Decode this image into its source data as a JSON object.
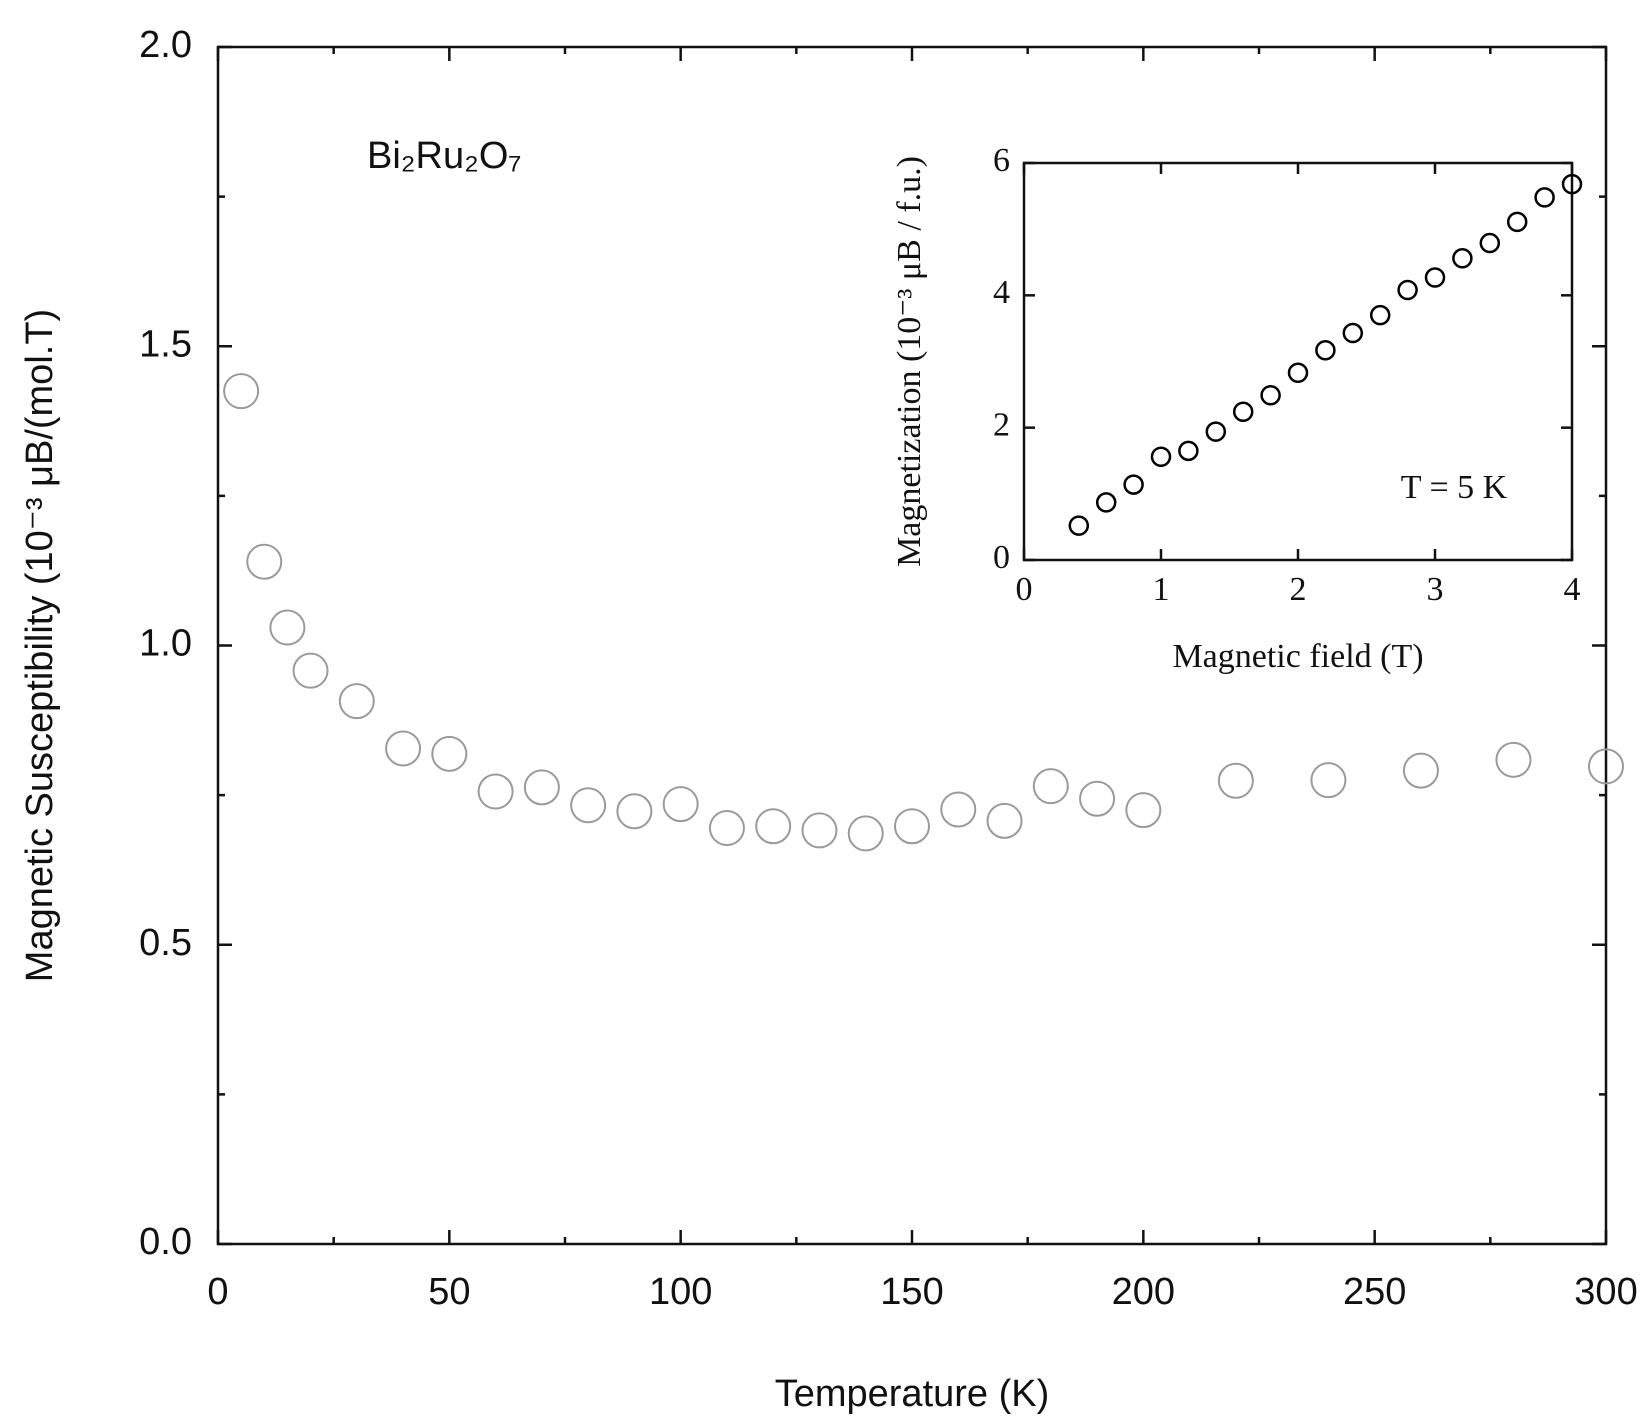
{
  "chart_data": [
    {
      "type": "scatter",
      "title": "Bi₂Ru₂O₇",
      "x_label": "Temperature (K)",
      "y_label": "Magnetic Susceptibility (10⁻³ μB/(mol.T)",
      "x": [
        5,
        10,
        15,
        20,
        30,
        40,
        50,
        60,
        70,
        80,
        90,
        100,
        110,
        120,
        130,
        140,
        150,
        160,
        170,
        180,
        190,
        200,
        220,
        240,
        260,
        280,
        300
      ],
      "values": [
        1.425,
        1.14,
        1.03,
        0.958,
        0.907,
        0.828,
        0.819,
        0.756,
        0.763,
        0.733,
        0.723,
        0.735,
        0.695,
        0.698,
        0.691,
        0.686,
        0.698,
        0.726,
        0.707,
        0.765,
        0.744,
        0.725,
        0.774,
        0.775,
        0.791,
        0.809,
        0.798
      ],
      "color": "#9a9a9a",
      "xlim": [
        0,
        300
      ],
      "xticks": [
        0,
        50,
        100,
        150,
        200,
        250,
        300
      ],
      "ylim": [
        0,
        2
      ],
      "yticks": [
        {
          "value": 0,
          "label": "0.0"
        },
        0.5,
        {
          "value": 1,
          "label": "1.0"
        },
        1.5,
        {
          "value": 2,
          "label": "2.0"
        }
      ],
      "minor_ticks": true
    },
    {
      "type": "scatter",
      "x_label": "Magnetic field (T)",
      "y_label": "Magnetization (10⁻³ μB / f.u.)",
      "annotation": "T = 5 K",
      "x": [
        0.4,
        0.6,
        0.8,
        1.0,
        1.2,
        1.4,
        1.6,
        1.8,
        2.0,
        2.2,
        2.4,
        2.6,
        2.8,
        3.0,
        3.2,
        3.4,
        3.6,
        3.8,
        4.0
      ],
      "values": [
        0.52,
        0.87,
        1.14,
        1.56,
        1.65,
        1.94,
        2.24,
        2.49,
        2.83,
        3.17,
        3.43,
        3.7,
        4.08,
        4.27,
        4.56,
        4.79,
        5.11,
        5.48,
        5.68
      ],
      "color": "#000000",
      "xlim": [
        0,
        4
      ],
      "xticks": [
        0,
        1,
        2,
        3,
        4
      ],
      "ylim": [
        0,
        6
      ],
      "yticks": [
        0,
        2,
        4,
        6
      ],
      "minor_ticks": false
    }
  ]
}
